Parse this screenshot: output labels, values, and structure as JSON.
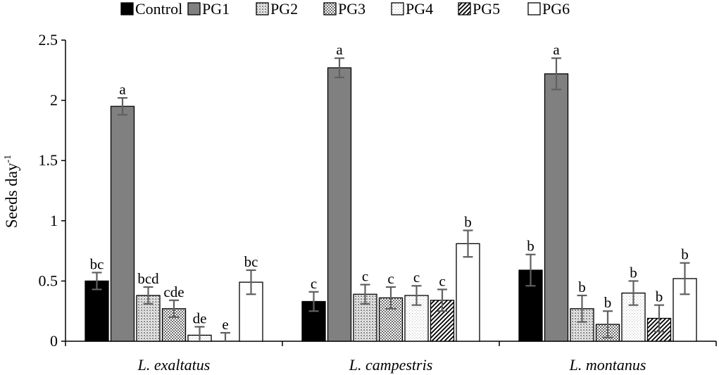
{
  "chart_data": {
    "type": "bar",
    "ylabel": "Seeds day",
    "ylabel_superscript": "-1",
    "ylim": [
      0,
      2.5
    ],
    "yticks": [
      0,
      0.5,
      1,
      1.5,
      2,
      2.5
    ],
    "ytick_labels": [
      "0",
      "0.5",
      "1",
      "1.5",
      "2",
      "2.5"
    ],
    "grid": false,
    "legend_position": "top",
    "categories": [
      "L. exaltatus",
      "L. campestris",
      "L. montanus"
    ],
    "series": [
      {
        "name": "Control",
        "pattern": "solid-black",
        "values": [
          0.5,
          0.33,
          0.59
        ],
        "errors": [
          0.07,
          0.08,
          0.13
        ],
        "labels": [
          "bc",
          "c",
          "b"
        ]
      },
      {
        "name": "PG1",
        "pattern": "solid-gray",
        "values": [
          1.95,
          2.27,
          2.22
        ],
        "errors": [
          0.07,
          0.08,
          0.13
        ],
        "labels": [
          "a",
          "a",
          "a"
        ]
      },
      {
        "name": "PG2",
        "pattern": "dotted-gray",
        "values": [
          0.38,
          0.39,
          0.27
        ],
        "errors": [
          0.07,
          0.08,
          0.11
        ],
        "labels": [
          "bcd",
          "c",
          "b"
        ]
      },
      {
        "name": "PG3",
        "pattern": "checker",
        "values": [
          0.27,
          0.36,
          0.14
        ],
        "errors": [
          0.07,
          0.09,
          0.11
        ],
        "labels": [
          "cde",
          "c",
          "b"
        ]
      },
      {
        "name": "PG4",
        "pattern": "light-dotted",
        "values": [
          0.05,
          0.38,
          0.4
        ],
        "errors": [
          0.07,
          0.08,
          0.1
        ],
        "labels": [
          "de",
          "c",
          "b"
        ]
      },
      {
        "name": "PG5",
        "pattern": "diagonal",
        "values": [
          0.0,
          0.34,
          0.19
        ],
        "errors": [
          0.07,
          0.09,
          0.11
        ],
        "labels": [
          "e",
          "c",
          "b"
        ]
      },
      {
        "name": "PG6",
        "pattern": "white",
        "values": [
          0.49,
          0.81,
          0.52
        ],
        "errors": [
          0.1,
          0.11,
          0.13
        ],
        "labels": [
          "bc",
          "b",
          "b"
        ]
      }
    ]
  }
}
